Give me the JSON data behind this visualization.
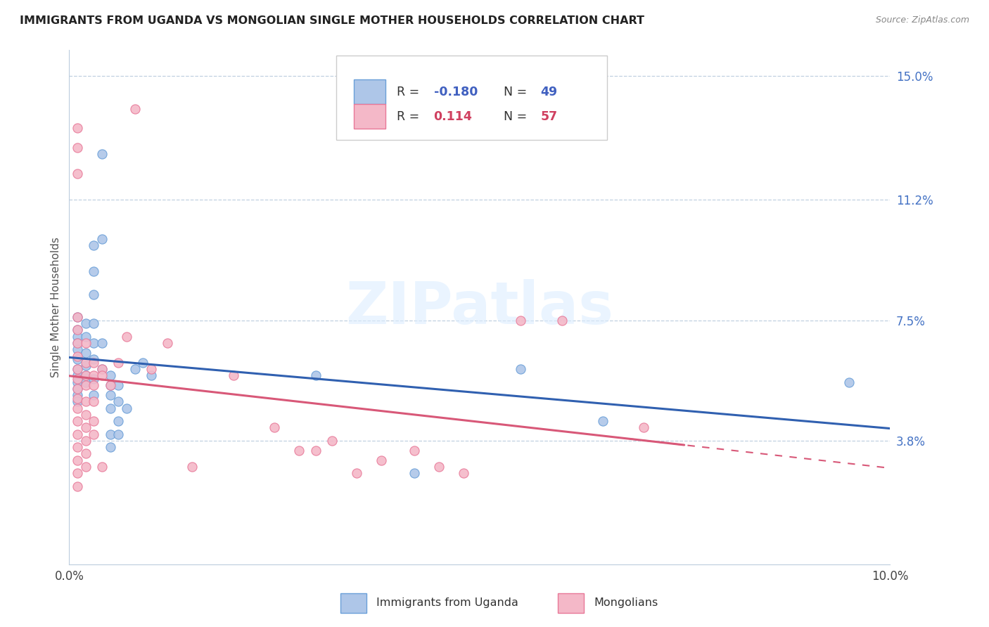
{
  "title": "IMMIGRANTS FROM UGANDA VS MONGOLIAN SINGLE MOTHER HOUSEHOLDS CORRELATION CHART",
  "source": "Source: ZipAtlas.com",
  "ylabel": "Single Mother Households",
  "xlim": [
    0.0,
    0.1
  ],
  "ylim": [
    0.0,
    0.158
  ],
  "yticks": [
    0.038,
    0.075,
    0.112,
    0.15
  ],
  "ytick_labels": [
    "3.8%",
    "7.5%",
    "11.2%",
    "15.0%"
  ],
  "xticks": [
    0.0,
    0.02,
    0.04,
    0.06,
    0.08,
    0.1
  ],
  "xtick_labels": [
    "0.0%",
    "",
    "",
    "",
    "",
    "10.0%"
  ],
  "blue_color": "#aec6e8",
  "blue_edge_color": "#6a9fd8",
  "pink_color": "#f4b8c8",
  "pink_edge_color": "#e87898",
  "blue_line_color": "#3060b0",
  "pink_line_color": "#d85878",
  "watermark_text": "ZIPatlas",
  "blue_scatter": [
    [
      0.001,
      0.076
    ],
    [
      0.001,
      0.072
    ],
    [
      0.001,
      0.07
    ],
    [
      0.001,
      0.068
    ],
    [
      0.001,
      0.066
    ],
    [
      0.001,
      0.063
    ],
    [
      0.001,
      0.06
    ],
    [
      0.001,
      0.058
    ],
    [
      0.001,
      0.056
    ],
    [
      0.001,
      0.054
    ],
    [
      0.001,
      0.052
    ],
    [
      0.001,
      0.05
    ],
    [
      0.002,
      0.074
    ],
    [
      0.002,
      0.07
    ],
    [
      0.002,
      0.065
    ],
    [
      0.002,
      0.061
    ],
    [
      0.002,
      0.058
    ],
    [
      0.002,
      0.056
    ],
    [
      0.003,
      0.098
    ],
    [
      0.003,
      0.09
    ],
    [
      0.003,
      0.083
    ],
    [
      0.003,
      0.074
    ],
    [
      0.003,
      0.068
    ],
    [
      0.003,
      0.063
    ],
    [
      0.003,
      0.057
    ],
    [
      0.003,
      0.052
    ],
    [
      0.004,
      0.126
    ],
    [
      0.004,
      0.1
    ],
    [
      0.004,
      0.068
    ],
    [
      0.004,
      0.06
    ],
    [
      0.005,
      0.058
    ],
    [
      0.005,
      0.055
    ],
    [
      0.005,
      0.052
    ],
    [
      0.005,
      0.048
    ],
    [
      0.005,
      0.04
    ],
    [
      0.005,
      0.036
    ],
    [
      0.006,
      0.055
    ],
    [
      0.006,
      0.05
    ],
    [
      0.006,
      0.044
    ],
    [
      0.006,
      0.04
    ],
    [
      0.007,
      0.048
    ],
    [
      0.008,
      0.06
    ],
    [
      0.009,
      0.062
    ],
    [
      0.01,
      0.058
    ],
    [
      0.03,
      0.058
    ],
    [
      0.042,
      0.028
    ],
    [
      0.055,
      0.06
    ],
    [
      0.065,
      0.044
    ],
    [
      0.095,
      0.056
    ]
  ],
  "pink_scatter": [
    [
      0.001,
      0.134
    ],
    [
      0.001,
      0.128
    ],
    [
      0.001,
      0.12
    ],
    [
      0.001,
      0.076
    ],
    [
      0.001,
      0.072
    ],
    [
      0.001,
      0.068
    ],
    [
      0.001,
      0.064
    ],
    [
      0.001,
      0.06
    ],
    [
      0.001,
      0.057
    ],
    [
      0.001,
      0.054
    ],
    [
      0.001,
      0.051
    ],
    [
      0.001,
      0.048
    ],
    [
      0.001,
      0.044
    ],
    [
      0.001,
      0.04
    ],
    [
      0.001,
      0.036
    ],
    [
      0.001,
      0.032
    ],
    [
      0.001,
      0.028
    ],
    [
      0.001,
      0.024
    ],
    [
      0.002,
      0.068
    ],
    [
      0.002,
      0.062
    ],
    [
      0.002,
      0.058
    ],
    [
      0.002,
      0.055
    ],
    [
      0.002,
      0.05
    ],
    [
      0.002,
      0.046
    ],
    [
      0.002,
      0.042
    ],
    [
      0.002,
      0.038
    ],
    [
      0.002,
      0.034
    ],
    [
      0.002,
      0.03
    ],
    [
      0.003,
      0.062
    ],
    [
      0.003,
      0.058
    ],
    [
      0.003,
      0.055
    ],
    [
      0.003,
      0.05
    ],
    [
      0.003,
      0.044
    ],
    [
      0.003,
      0.04
    ],
    [
      0.004,
      0.06
    ],
    [
      0.004,
      0.058
    ],
    [
      0.004,
      0.03
    ],
    [
      0.005,
      0.055
    ],
    [
      0.006,
      0.062
    ],
    [
      0.007,
      0.07
    ],
    [
      0.008,
      0.14
    ],
    [
      0.01,
      0.06
    ],
    [
      0.012,
      0.068
    ],
    [
      0.015,
      0.03
    ],
    [
      0.02,
      0.058
    ],
    [
      0.025,
      0.042
    ],
    [
      0.028,
      0.035
    ],
    [
      0.03,
      0.035
    ],
    [
      0.032,
      0.038
    ],
    [
      0.035,
      0.028
    ],
    [
      0.038,
      0.032
    ],
    [
      0.042,
      0.035
    ],
    [
      0.045,
      0.03
    ],
    [
      0.048,
      0.028
    ],
    [
      0.055,
      0.075
    ],
    [
      0.06,
      0.075
    ],
    [
      0.07,
      0.042
    ]
  ]
}
